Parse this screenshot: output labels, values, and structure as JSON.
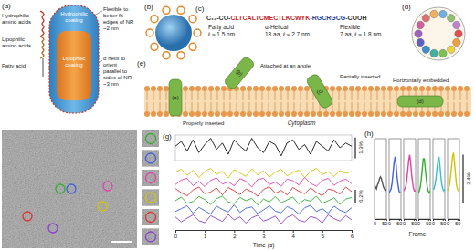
{
  "panel_labels": [
    "(a)",
    "(b)",
    "(c)",
    "(d)",
    "(e)",
    "(f)",
    "(g)",
    "(h)"
  ],
  "a": {
    "left_labels": [
      "Hydrophilic amino acids",
      "Lipophilic amino acids",
      "Fatty acid"
    ],
    "coating_labels": [
      "Hydrophilic coating",
      "Lipophilic coating"
    ],
    "right_labels": [
      "Flexible to better fit edges of NR ~2 nm",
      "α helix to orient parallel to sides of NR ~3 nm"
    ]
  },
  "c": {
    "sequence": [
      {
        "text": "C₁₄-CO-",
        "color": "#333333"
      },
      {
        "text": "CLTCALTCMECTLKCWYK",
        "color": "#c62828"
      },
      {
        "text": "-RGCRGCG-",
        "color": "#2a3f9a"
      },
      {
        "text": "COOH",
        "color": "#333333"
      }
    ],
    "segments": [
      {
        "name": "Fatty acid",
        "detail": "ℓ ≈ 1.5 nm"
      },
      {
        "name": "α-Helical",
        "detail": "18 aa, ℓ ≈ 2.7 nm"
      },
      {
        "name": "Flexible",
        "detail": "7 aa, ℓ ≈ 1.8 nm"
      }
    ]
  },
  "e": {
    "peptides": [
      {
        "label": "(a)",
        "caption": "Properly inserted"
      },
      {
        "label": "(b)",
        "caption": "Attached at an angle"
      },
      {
        "label": "(c)",
        "caption": "Partially inserted"
      },
      {
        "label": "(d)",
        "caption": "Horizontally embedded"
      }
    ],
    "region": "Cytoplasm"
  },
  "f": {
    "particle_colors": [
      "#30b030",
      "#4060e0",
      "#e040b0",
      "#d4c400",
      "#e03030",
      "#8a40d0"
    ]
  },
  "chart_data": [
    {
      "type": "line",
      "x": [
        0,
        0.2,
        0.4,
        0.6,
        0.8,
        1,
        1.2,
        1.4,
        1.6,
        1.8,
        2,
        2.2,
        2.4,
        2.6,
        2.8,
        3,
        3.2,
        3.4,
        3.6,
        3.8,
        4,
        4.2,
        4.4,
        4.6,
        4.8,
        5,
        5.2,
        5.4,
        5.6,
        5.8,
        6
      ],
      "series": [
        {
          "color": "#111111",
          "values": [
            0.1,
            0.4,
            -0.2,
            0.5,
            -0.3,
            0.2,
            0.6,
            -0.1,
            0.3,
            -0.4,
            0.5,
            0.1,
            -0.2,
            0.6,
            0.0,
            -0.3,
            0.4,
            0.2,
            -0.5,
            0.3,
            0.5,
            -0.1,
            0.2,
            -0.4,
            0.4,
            0.1,
            -0.2,
            0.5,
            0.0,
            0.3,
            0.1
          ]
        }
      ],
      "xlim": [
        0,
        6
      ],
      "ylim": [
        -0.8,
        0.8
      ],
      "scale_bar": 1.3,
      "scale_bar_label": "1.3%",
      "tick_labels": false
    },
    {
      "type": "line",
      "x": [
        0,
        0.2,
        0.4,
        0.6,
        0.8,
        1,
        1.2,
        1.4,
        1.6,
        1.8,
        2,
        2.2,
        2.4,
        2.6,
        2.8,
        3,
        3.2,
        3.4,
        3.6,
        3.8,
        4,
        4.2,
        4.4,
        4.6,
        4.8,
        5,
        5.2,
        5.4,
        5.6,
        5.8,
        6
      ],
      "series": [
        {
          "color": "#d4c400",
          "values": [
            0.5,
            2.0,
            -1.0,
            1.5,
            -2.0,
            0.8,
            2.5,
            -0.5,
            1.0,
            -2.2,
            1.8,
            0.2,
            -1.5,
            2.2,
            -0.8,
            1.2,
            -1.8,
            0.6,
            2.0,
            -1.2,
            0.4,
            1.6,
            -2.0,
            1.0,
            2.4,
            -0.6,
            0.8,
            -1.6,
            1.4,
            0.0,
            0.9
          ]
        },
        {
          "color": "#e040b0",
          "values": [
            -1.0,
            1.2,
            2.0,
            -1.5,
            0.5,
            -2.0,
            1.0,
            2.2,
            -0.8,
            0.4,
            -1.6,
            1.8,
            0.6,
            -2.2,
            1.4,
            2.0,
            -1.0,
            0.2,
            -1.8,
            1.6,
            0.8,
            -1.2,
            2.4,
            -0.4,
            -1.8,
            1.0,
            2.0,
            -1.4,
            0.6,
            1.6,
            -0.6
          ]
        },
        {
          "color": "#e03030",
          "values": [
            1.5,
            -0.5,
            -2.0,
            0.8,
            2.2,
            -1.0,
            -0.2,
            1.8,
            -1.6,
            2.0,
            0.4,
            -1.4,
            1.2,
            0.0,
            -2.2,
            1.0,
            2.4,
            -0.8,
            0.6,
            -1.6,
            2.0,
            0.2,
            -1.0,
            1.8,
            -0.4,
            -2.0,
            1.2,
            0.6,
            -1.2,
            2.2,
            0.0
          ]
        },
        {
          "color": "#30b030",
          "values": [
            0.0,
            1.8,
            -1.2,
            -0.4,
            2.0,
            0.6,
            -1.8,
            1.0,
            2.2,
            -0.6,
            -1.4,
            1.6,
            0.0,
            1.2,
            -2.0,
            0.8,
            -0.6,
            2.0,
            -1.0,
            0.4,
            1.8,
            -1.6,
            0.6,
            -0.2,
            2.2,
            -1.2,
            0.0,
            1.4,
            -1.8,
            0.8,
            1.6
          ]
        },
        {
          "color": "#4060e0",
          "values": [
            -0.8,
            0.6,
            2.0,
            -1.6,
            1.2,
            -0.4,
            -2.0,
            1.8,
            0.2,
            -1.0,
            2.4,
            -1.2,
            0.8,
            1.4,
            -1.8,
            0.0,
            2.0,
            -0.6,
            -1.4,
            1.6,
            0.4,
            -2.0,
            1.0,
            2.2,
            -0.8,
            0.6,
            -1.6,
            1.8,
            -0.2,
            -1.2,
            1.0
          ]
        },
        {
          "color": "#8a40d0",
          "values": [
            1.0,
            -1.4,
            0.4,
            2.0,
            -0.8,
            -1.8,
            1.6,
            0.2,
            -1.2,
            2.2,
            -0.4,
            1.0,
            -2.0,
            0.6,
            1.8,
            -1.0,
            0.0,
            1.4,
            -2.2,
            0.8,
            2.0,
            -0.6,
            -1.4,
            1.2,
            0.4,
            -1.8,
            2.0,
            0.2,
            -1.0,
            1.6,
            -0.4
          ]
        }
      ],
      "xlim": [
        0,
        6
      ],
      "xticks": [
        0,
        1,
        2,
        3,
        4,
        5,
        6
      ],
      "xlabel": "Time (s)",
      "ylim": [
        -3.5,
        3.5
      ],
      "scale_bar": 6.2,
      "scale_bar_label": "6.2%",
      "tick_labels": "x"
    },
    {
      "type": "line",
      "x": [
        0,
        5,
        10,
        15,
        20,
        25,
        30,
        35,
        40,
        45,
        50,
        55,
        60
      ],
      "series": [
        {
          "color": "#555555",
          "values": [
            0.0,
            0.1,
            0.0,
            0.2,
            0.3,
            0.5,
            0.6,
            0.5,
            0.3,
            0.1,
            0.0,
            -0.1,
            0.0
          ]
        },
        {
          "color": "#4060e0",
          "values": [
            -0.2,
            -0.1,
            0.0,
            0.3,
            0.8,
            1.3,
            1.6,
            1.2,
            0.6,
            0.2,
            -0.1,
            -0.2,
            -0.2
          ]
        },
        {
          "color": "#e040b0",
          "values": [
            -0.1,
            0.0,
            0.1,
            0.4,
            0.9,
            1.4,
            1.7,
            1.3,
            0.7,
            0.3,
            0.0,
            -0.1,
            -0.1
          ]
        },
        {
          "color": "#30b030",
          "values": [
            -0.2,
            -0.1,
            0.1,
            0.5,
            1.0,
            1.5,
            1.5,
            1.0,
            0.5,
            0.1,
            -0.1,
            -0.2,
            -0.1
          ]
        },
        {
          "color": "#30c0d0",
          "values": [
            0.0,
            0.0,
            0.2,
            0.5,
            1.0,
            1.4,
            1.6,
            1.2,
            0.6,
            0.2,
            0.0,
            -0.1,
            0.0
          ]
        },
        {
          "color": "#d4c400",
          "values": [
            -0.1,
            0.0,
            0.2,
            0.6,
            1.1,
            1.6,
            1.8,
            1.3,
            0.7,
            0.2,
            0.0,
            -0.1,
            -0.2
          ]
        }
      ],
      "xlim": [
        0,
        60
      ],
      "xticks": [
        0,
        50
      ],
      "xlabel": "Frame",
      "ylim": [
        -1.5,
        2.5
      ],
      "scale_bar": 2.4,
      "scale_bar_label": "2.4%",
      "tick_labels": "x"
    }
  ]
}
